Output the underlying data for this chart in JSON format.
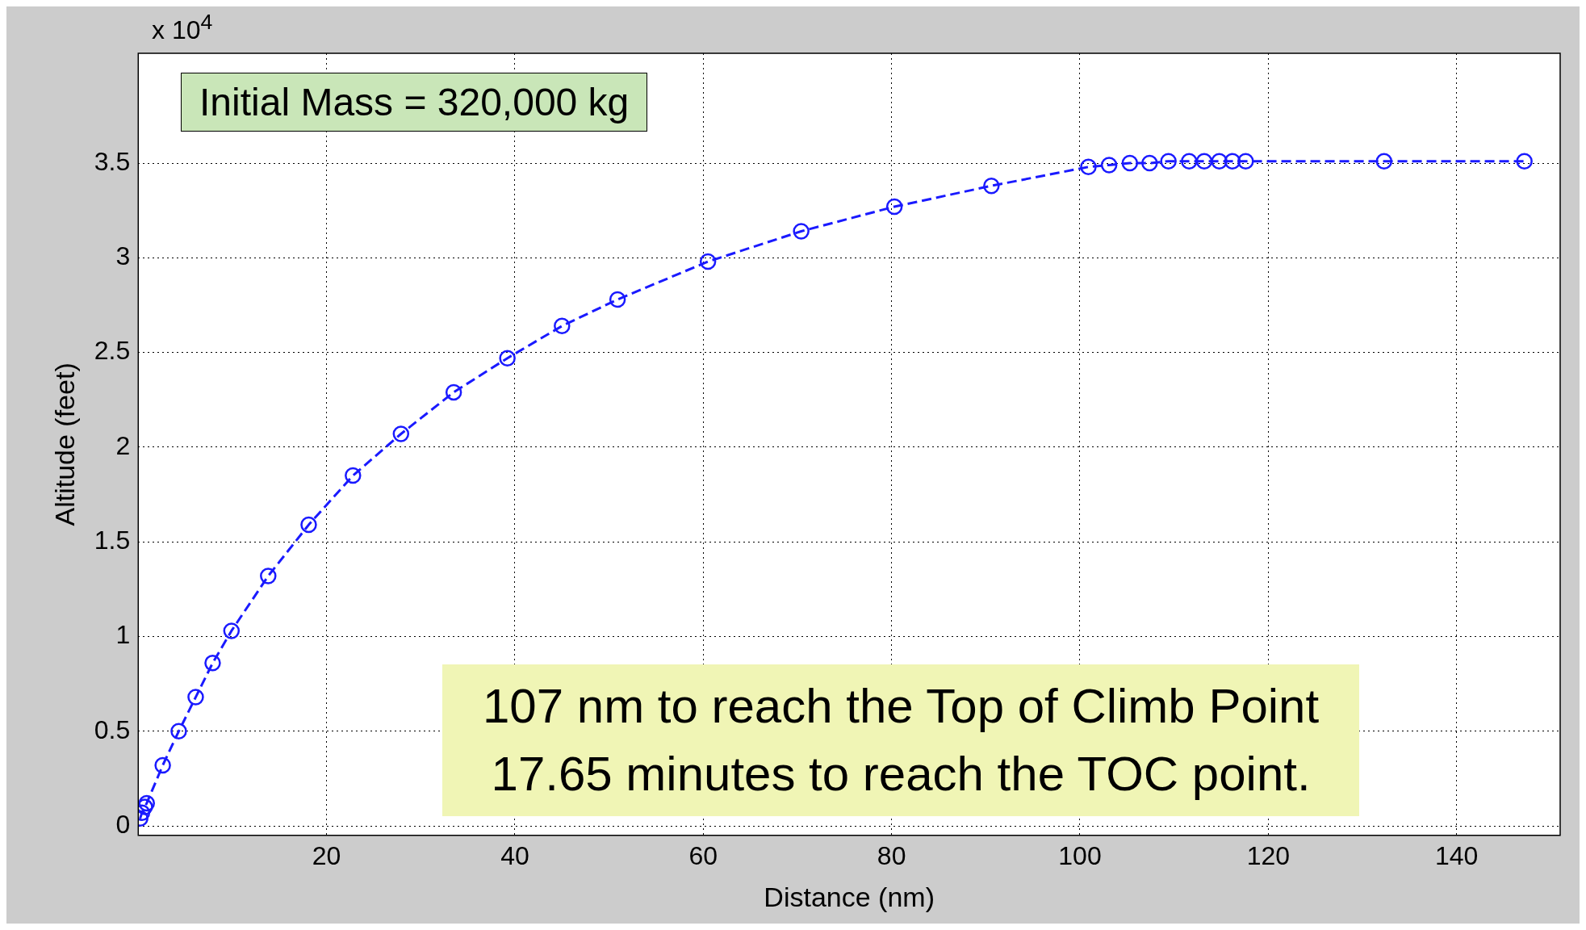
{
  "chart_data": {
    "type": "line",
    "xlabel": "Distance (nm)",
    "ylabel": "Altitude (feet)",
    "annotations": [
      "x 10$^{4}$",
      "Initial Mass = 320,000 kg",
      "107 nm to reach the Top of Climb Point\n17.65 minutes to reach the TOC point."
    ],
    "xlim": [
      0,
      151
    ],
    "xticks": [
      20,
      40,
      60,
      80,
      100,
      120,
      140
    ],
    "ylim": [
      -0.05,
      4.08
    ],
    "yticks": [
      0,
      0.5,
      1,
      1.5,
      2,
      2.5,
      3,
      3.5
    ],
    "grid": true,
    "marker": "circle",
    "line_style": "dashed",
    "series": [
      {
        "color": "#1a1aff",
        "x": [
          0.2,
          0.4,
          0.7,
          0.9,
          2.6,
          4.3,
          6.1,
          7.9,
          9.9,
          13.8,
          18.1,
          22.8,
          27.9,
          33.5,
          39.2,
          45.0,
          50.9,
          60.5,
          70.4,
          80.3,
          90.6,
          100.9,
          103.1,
          105.3,
          107.4,
          109.4,
          111.6,
          113.2,
          114.8,
          116.2,
          117.6,
          132.3,
          147.2
        ],
        "values": [
          0.04,
          0.07,
          0.1,
          0.12,
          0.32,
          0.5,
          0.68,
          0.86,
          1.03,
          1.32,
          1.59,
          1.85,
          2.07,
          2.29,
          2.47,
          2.64,
          2.78,
          2.98,
          3.14,
          3.27,
          3.38,
          3.48,
          3.49,
          3.5,
          3.5,
          3.51,
          3.51,
          3.51,
          3.51,
          3.51,
          3.51,
          3.51,
          3.51
        ]
      }
    ]
  }
}
